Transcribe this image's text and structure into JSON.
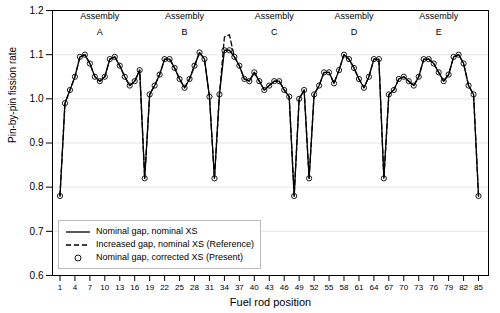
{
  "chart_data": {
    "type": "line",
    "xlabel": "Fuel rod position",
    "ylabel": "Pin-by-pin fission rate",
    "x": [
      1,
      2,
      3,
      4,
      5,
      6,
      7,
      8,
      9,
      10,
      11,
      12,
      13,
      14,
      15,
      16,
      17,
      18,
      19,
      20,
      21,
      22,
      23,
      24,
      25,
      26,
      27,
      28,
      29,
      30,
      31,
      32,
      33,
      34,
      35,
      36,
      37,
      38,
      39,
      40,
      41,
      42,
      43,
      44,
      45,
      46,
      47,
      48,
      49,
      50,
      51,
      52,
      53,
      54,
      55,
      56,
      57,
      58,
      59,
      60,
      61,
      62,
      63,
      64,
      65,
      66,
      67,
      68,
      69,
      70,
      71,
      72,
      73,
      74,
      75,
      76,
      77,
      78,
      79,
      80,
      81,
      82,
      83,
      84,
      85
    ],
    "xlim": [
      -0.5,
      87
    ],
    "xticks": [
      1,
      4,
      7,
      10,
      13,
      16,
      19,
      22,
      25,
      28,
      31,
      34,
      37,
      40,
      43,
      46,
      49,
      52,
      55,
      58,
      61,
      64,
      67,
      70,
      73,
      76,
      79,
      82,
      85
    ],
    "ylim": [
      0.6,
      1.2
    ],
    "yticks": [
      0.6,
      0.7,
      0.8,
      0.9,
      {
        "value": 1.0,
        "label": "1.0"
      },
      1.1,
      1.2
    ],
    "grid": "y",
    "legend": "lower left",
    "series": [
      {
        "name": "Nominal gap, nominal XS",
        "type": "line",
        "line_style": "solid",
        "color": "black",
        "values": [
          0.78,
          0.99,
          1.02,
          1.05,
          1.095,
          1.1,
          1.08,
          1.05,
          1.04,
          1.05,
          1.09,
          1.095,
          1.075,
          1.05,
          1.03,
          1.04,
          1.065,
          0.82,
          1.01,
          1.03,
          1.055,
          1.09,
          1.09,
          1.07,
          1.045,
          1.025,
          1.045,
          1.075,
          1.105,
          1.09,
          1.005,
          0.82,
          1.01,
          1.11,
          1.11,
          1.095,
          1.075,
          1.045,
          1.04,
          1.06,
          1.04,
          1.02,
          1.03,
          1.04,
          1.04,
          1.02,
          1.005,
          0.78,
          1.0,
          1.02,
          0.82,
          1.01,
          1.03,
          1.06,
          1.06,
          1.035,
          1.065,
          1.1,
          1.09,
          1.07,
          1.045,
          1.025,
          1.05,
          1.09,
          1.09,
          0.82,
          1.01,
          1.02,
          1.045,
          1.05,
          1.04,
          1.03,
          1.05,
          1.09,
          1.09,
          1.08,
          1.06,
          1.04,
          1.055,
          1.095,
          1.1,
          1.08,
          1.03,
          1.01,
          0.78
        ]
      },
      {
        "name": "Increased gap, nominal XS (Reference)",
        "type": "line",
        "line_style": "dashed",
        "color": "black",
        "values": [
          0.78,
          0.99,
          1.02,
          1.05,
          1.095,
          1.1,
          1.08,
          1.05,
          1.04,
          1.05,
          1.09,
          1.095,
          1.075,
          1.05,
          1.03,
          1.04,
          1.065,
          0.82,
          1.01,
          1.03,
          1.055,
          1.09,
          1.09,
          1.07,
          1.045,
          1.025,
          1.045,
          1.075,
          1.105,
          1.09,
          1.005,
          0.82,
          1.01,
          1.14,
          1.145,
          1.095,
          1.075,
          1.045,
          1.04,
          1.06,
          1.04,
          1.02,
          1.03,
          1.04,
          1.04,
          1.02,
          1.005,
          0.78,
          1.0,
          1.02,
          0.82,
          1.01,
          1.03,
          1.06,
          1.06,
          1.035,
          1.065,
          1.1,
          1.09,
          1.07,
          1.045,
          1.025,
          1.05,
          1.09,
          1.09,
          0.82,
          1.01,
          1.02,
          1.045,
          1.05,
          1.04,
          1.03,
          1.05,
          1.09,
          1.09,
          1.08,
          1.06,
          1.04,
          1.055,
          1.095,
          1.1,
          1.08,
          1.03,
          1.01,
          0.78
        ]
      },
      {
        "name": "Nominal gap, corrected XS (Present)",
        "type": "scatter",
        "marker": "circle",
        "color": "black",
        "values": [
          0.78,
          0.99,
          1.02,
          1.05,
          1.095,
          1.1,
          1.08,
          1.05,
          1.04,
          1.05,
          1.09,
          1.095,
          1.075,
          1.05,
          1.03,
          1.04,
          1.065,
          0.82,
          1.01,
          1.03,
          1.055,
          1.09,
          1.09,
          1.07,
          1.045,
          1.025,
          1.045,
          1.075,
          1.105,
          1.09,
          1.005,
          0.82,
          1.01,
          1.11,
          1.11,
          1.095,
          1.075,
          1.045,
          1.04,
          1.06,
          1.04,
          1.02,
          1.03,
          1.04,
          1.04,
          1.02,
          1.005,
          0.78,
          1.0,
          1.02,
          0.82,
          1.01,
          1.03,
          1.06,
          1.06,
          1.035,
          1.065,
          1.1,
          1.09,
          1.07,
          1.045,
          1.025,
          1.05,
          1.09,
          1.09,
          0.82,
          1.01,
          1.02,
          1.045,
          1.05,
          1.04,
          1.03,
          1.05,
          1.09,
          1.09,
          1.08,
          1.06,
          1.04,
          1.055,
          1.095,
          1.1,
          1.08,
          1.03,
          1.01,
          0.78
        ]
      }
    ],
    "annotations": [
      {
        "text": "Assembly",
        "x": 9,
        "y": 1.195
      },
      {
        "text": "A",
        "x": 9,
        "y": 1.16
      },
      {
        "text": "Assembly",
        "x": 26,
        "y": 1.195
      },
      {
        "text": "B",
        "x": 26,
        "y": 1.16
      },
      {
        "text": "Assembly",
        "x": 44,
        "y": 1.195
      },
      {
        "text": "C",
        "x": 44,
        "y": 1.16
      },
      {
        "text": "Assembly",
        "x": 60,
        "y": 1.195
      },
      {
        "text": "D",
        "x": 60,
        "y": 1.16
      },
      {
        "text": "Assembly",
        "x": 77,
        "y": 1.195
      },
      {
        "text": "E",
        "x": 77,
        "y": 1.16
      }
    ]
  }
}
